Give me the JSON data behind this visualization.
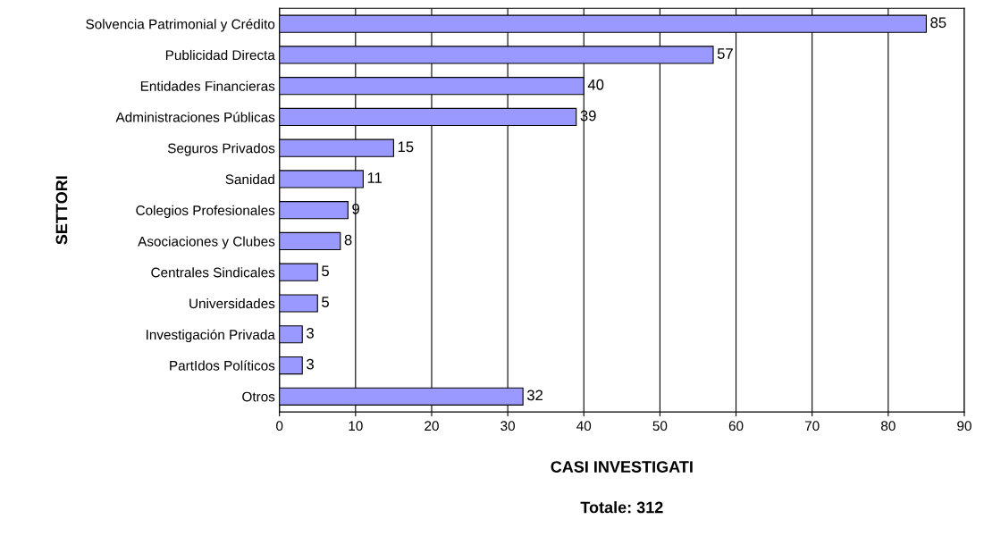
{
  "chart_data": {
    "type": "bar",
    "orientation": "horizontal",
    "ylabel": "SETTORI",
    "xlabel": "CASI INVESTIGATI",
    "annotations": [
      "Totale: 312"
    ],
    "categories": [
      "Solvencia Patrimonial y Crédito",
      "Publicidad Directa",
      "Entidades Financieras",
      "Administraciones Públicas",
      "Seguros Privados",
      "Sanidad",
      "Colegios Profesionales",
      "Asociaciones y Clubes",
      "Centrales Sindicales",
      "Universidades",
      "Investigación Privada",
      "PartIdos Políticos",
      "Otros"
    ],
    "values": [
      85,
      57,
      40,
      39,
      15,
      11,
      9,
      8,
      5,
      5,
      3,
      3,
      32
    ],
    "color": "#9999ff",
    "xlim": [
      0,
      90
    ],
    "xticks": [
      0,
      10,
      20,
      30,
      40,
      50,
      60,
      70,
      80,
      90
    ],
    "grid": "x",
    "data_labels": true
  }
}
